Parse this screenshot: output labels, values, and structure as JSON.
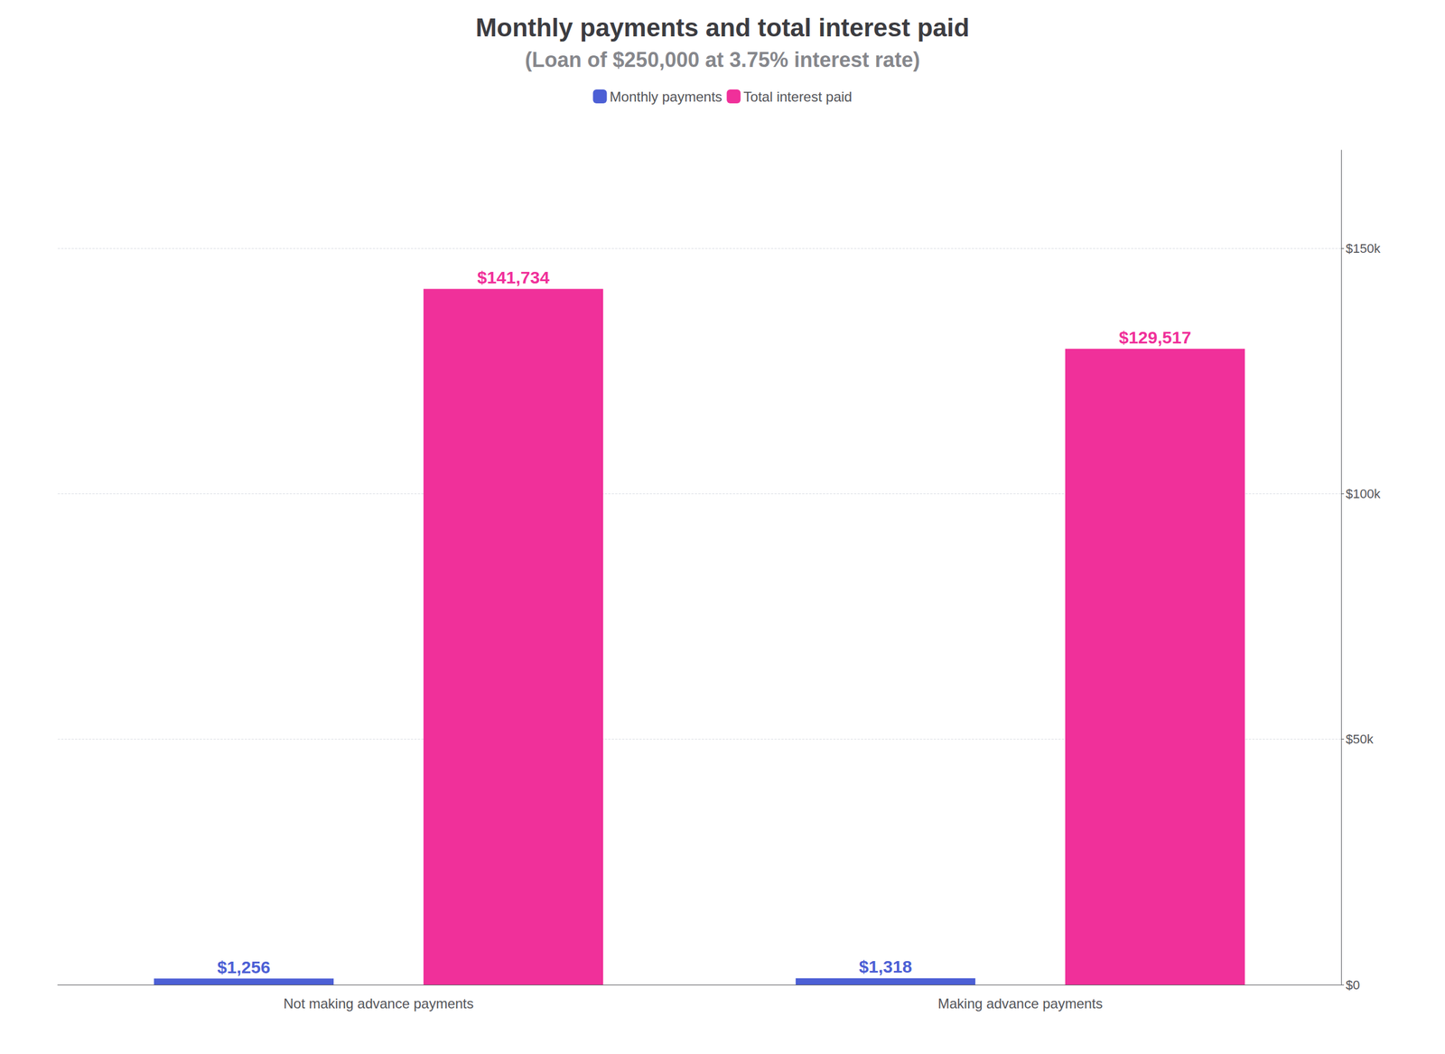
{
  "chart_data": {
    "type": "bar",
    "title": "Monthly payments and total interest paid",
    "subtitle": "(Loan of $250,000 at 3.75% interest rate)",
    "categories": [
      "Not making advance payments",
      "Making advance payments"
    ],
    "series": [
      {
        "name": "Monthly payments",
        "color": "#4c5fd5",
        "values": [
          1256,
          1318
        ],
        "value_labels": [
          "$1,256",
          "$1,318"
        ]
      },
      {
        "name": "Total interest paid",
        "color": "#f0309a",
        "values": [
          141734,
          129517
        ],
        "value_labels": [
          "$141,734",
          "$129,517"
        ]
      }
    ],
    "ylim": [
      0,
      170000
    ],
    "yticks": [
      {
        "value": 0,
        "label": "$0"
      },
      {
        "value": 50000,
        "label": "$50k"
      },
      {
        "value": 100000,
        "label": "$100k"
      },
      {
        "value": 150000,
        "label": "$150k"
      }
    ],
    "grid": true,
    "legend": "top",
    "data_labels": true
  }
}
